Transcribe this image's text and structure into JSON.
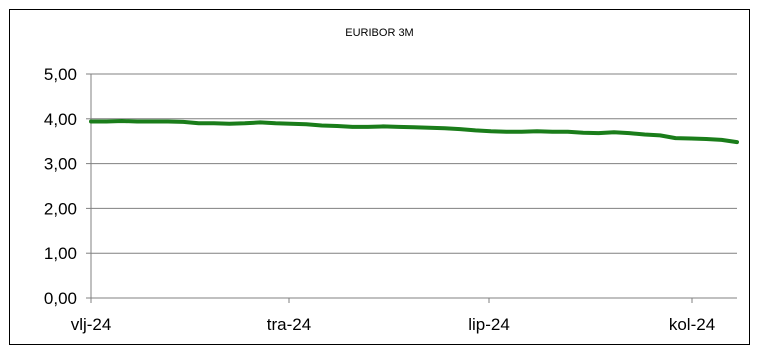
{
  "chart_data": {
    "type": "line",
    "title": "EURIBOR 3M",
    "xlabel": "",
    "ylabel": "",
    "ylim": [
      0,
      5
    ],
    "y_ticks": [
      "0,00",
      "1,00",
      "2,00",
      "3,00",
      "4,00",
      "5,00"
    ],
    "x_ticks": [
      "vlj-24",
      "tra-24",
      "lip-24",
      "kol-24"
    ],
    "grid": "horizontal",
    "legend": "none",
    "series": [
      {
        "color": "#1a7d1a",
        "x": [
          0,
          5,
          10,
          15,
          20,
          25,
          30,
          35,
          40,
          45,
          50,
          55,
          60,
          65,
          70,
          75,
          80,
          85,
          90,
          95,
          100,
          105,
          110,
          115,
          120,
          125,
          130,
          135,
          140,
          145,
          150,
          155,
          160,
          165,
          170,
          175,
          180,
          185,
          190,
          195,
          200,
          205,
          210
        ],
        "values": [
          3.94,
          3.94,
          3.95,
          3.94,
          3.94,
          3.94,
          3.93,
          3.9,
          3.9,
          3.89,
          3.9,
          3.92,
          3.9,
          3.89,
          3.88,
          3.85,
          3.84,
          3.82,
          3.82,
          3.83,
          3.82,
          3.81,
          3.8,
          3.79,
          3.77,
          3.74,
          3.72,
          3.71,
          3.71,
          3.72,
          3.71,
          3.71,
          3.69,
          3.68,
          3.7,
          3.68,
          3.65,
          3.63,
          3.57,
          3.56,
          3.55,
          3.53,
          3.48
        ]
      }
    ]
  }
}
